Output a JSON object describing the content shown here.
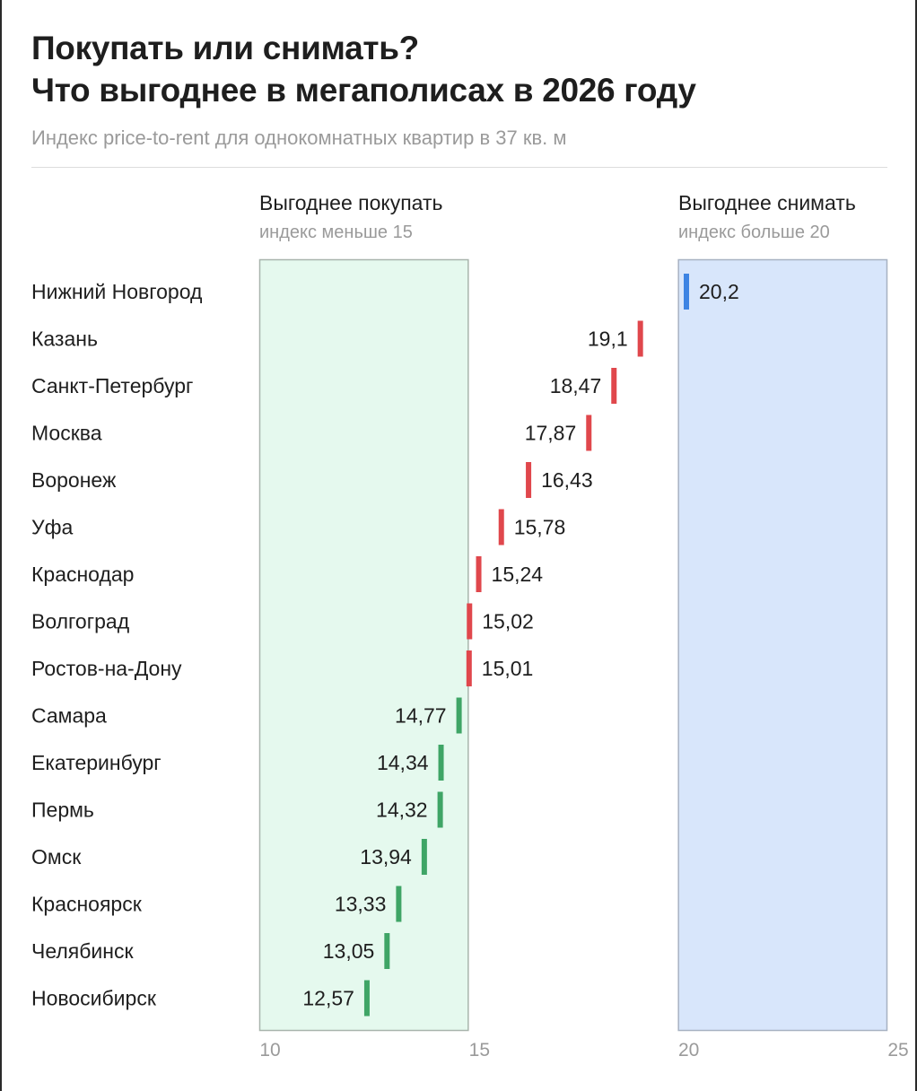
{
  "title_line1": "Покупать или снимать?",
  "title_line2": "Что выгоднее в мегаполисах в 2026 году",
  "subtitle": "Индекс price-to-rent для однокомнатных квартир в 37 кв. м",
  "zones": {
    "buy": {
      "title": "Выгоднее покупать",
      "subtitle": "индекс меньше 15",
      "fill": "#e5f9ee",
      "border": "#a8b4ac"
    },
    "rent": {
      "title": "Выгоднее снимать",
      "subtitle": "индекс больше 20",
      "fill": "#d8e6fb",
      "border": "#a7b2c2"
    }
  },
  "colors": {
    "green": "#3fa566",
    "red": "#e0474c",
    "blue": "#3d84e3",
    "tick_text": "#9a9a9a"
  },
  "chart_data": {
    "type": "dot",
    "xlim": [
      10,
      25
    ],
    "x_ticks": [
      {
        "value": 10,
        "label": "10"
      },
      {
        "value": 15,
        "label": "15"
      },
      {
        "value": 20,
        "label": "20"
      },
      {
        "value": 25,
        "label": "25"
      }
    ],
    "categories": [
      "Нижний Новгород",
      "Казань",
      "Санкт-Петербург",
      "Москва",
      "Воронеж",
      "Уфа",
      "Краснодар",
      "Волгоград",
      "Ростов-на-Дону",
      "Самара",
      "Екатеринбург",
      "Пермь",
      "Омск",
      "Красноярск",
      "Челябинск",
      "Новосибирск"
    ],
    "values": [
      20.2,
      19.1,
      18.47,
      17.87,
      16.43,
      15.78,
      15.24,
      15.02,
      15.01,
      14.77,
      14.34,
      14.32,
      13.94,
      13.33,
      13.05,
      12.57
    ],
    "value_labels": [
      "20,2",
      "19,1",
      "18,47",
      "17,87",
      "16,43",
      "15,78",
      "15,24",
      "15,02",
      "15,01",
      "14,77",
      "14,34",
      "14,32",
      "13,94",
      "13,33",
      "13,05",
      "12,57"
    ],
    "label_side": [
      "right",
      "left",
      "left",
      "left",
      "right",
      "right",
      "right",
      "right",
      "right",
      "left",
      "left",
      "left",
      "left",
      "left",
      "left",
      "left"
    ],
    "thresholds": {
      "buy_below": 15,
      "rent_above": 20
    }
  }
}
